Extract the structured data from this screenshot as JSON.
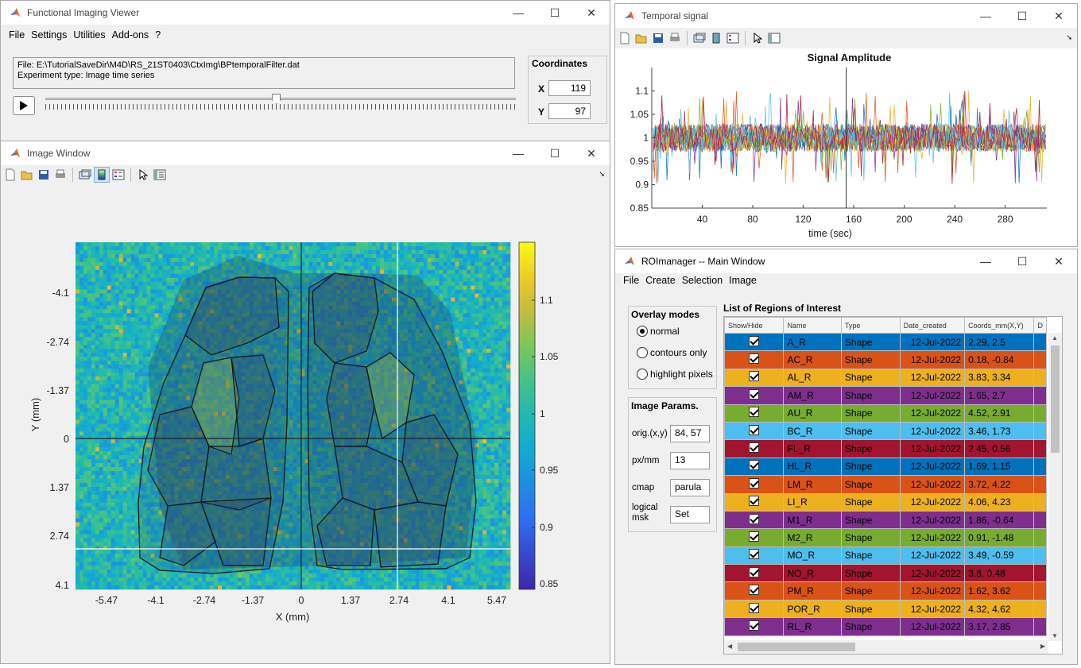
{
  "viewer": {
    "title": "Functional Imaging Viewer",
    "menu": [
      "File",
      "Settings",
      "Utilities",
      "Add-ons",
      "?"
    ],
    "file_line": "File: E:\\TutorialSaveDir\\M4D\\RS_21ST0403\\CtxImg\\BPtemporalFilter.dat",
    "type_line": "Experiment type: Image time series",
    "coords_title": "Coordinates",
    "x_label": "X",
    "x_value": "119",
    "y_label": "Y",
    "y_value": "97",
    "slider_fraction": 0.49
  },
  "image_window": {
    "title": "Image Window",
    "y_ticks": [
      "-4.1",
      "-2.74",
      "-1.37",
      "0",
      "1.37",
      "2.74",
      "4.1"
    ],
    "x_ticks": [
      "-5.47",
      "-4.1",
      "-2.74",
      "-1.37",
      "0",
      "1.37",
      "2.74",
      "4.1",
      "5.47"
    ],
    "xlabel": "X (mm)",
    "ylabel": "Y (mm)",
    "colorbar_ticks": [
      "1.1",
      "1.05",
      "1",
      "0.95",
      "0.9",
      "0.85"
    ]
  },
  "temporal": {
    "title": "Temporal signal",
    "chart_data": {
      "type": "line",
      "title": "Signal Amplitude",
      "xlabel": "time (sec)",
      "ylabel": "",
      "x_ticks": [
        "40",
        "80",
        "120",
        "160",
        "200",
        "240",
        "280"
      ],
      "y_ticks": [
        "1.1",
        "1.05",
        "1",
        "0.95",
        "0.9",
        "0.85"
      ],
      "xlim": [
        0,
        313
      ],
      "ylim": [
        0.85,
        1.15
      ],
      "cursor_x": 154
    }
  },
  "roi_manager": {
    "title": "ROImanager -- Main Window",
    "menu": [
      "File",
      "Create",
      "Selection",
      "Image"
    ],
    "overlay_title": "Overlay modes",
    "overlay_options": [
      "normal",
      "contours only",
      "highlight pixels"
    ],
    "overlay_selected": 0,
    "params_title": "Image Params.",
    "params": [
      {
        "label": "orig.(x,y)",
        "value": "84, 57"
      },
      {
        "label": "px/mm",
        "value": "13"
      },
      {
        "label": "cmap",
        "value": "parula"
      },
      {
        "label": "logical msk",
        "value": "Set"
      }
    ],
    "list_title": "List of Regions of Interest",
    "columns": [
      "Show/Hide",
      "Name",
      "Type",
      "Date_created",
      "Coords_mm(X,Y)",
      "D"
    ],
    "rows": [
      {
        "name": "A_R",
        "type": "Shape",
        "date": "12-Jul-2022",
        "coords": "2.29, 2.5",
        "color": "#0072bd"
      },
      {
        "name": "AC_R",
        "type": "Shape",
        "date": "12-Jul-2022",
        "coords": "0.18, -0.84",
        "color": "#d95319"
      },
      {
        "name": "AL_R",
        "type": "Shape",
        "date": "12-Jul-2022",
        "coords": "3.83, 3.34",
        "color": "#edb120"
      },
      {
        "name": "AM_R",
        "type": "Shape",
        "date": "12-Jul-2022",
        "coords": "1.65, 2.7",
        "color": "#7e2f8e"
      },
      {
        "name": "AU_R",
        "type": "Shape",
        "date": "12-Jul-2022",
        "coords": "4.52, 2.91",
        "color": "#77ac30"
      },
      {
        "name": "BC_R",
        "type": "Shape",
        "date": "12-Jul-2022",
        "coords": "3.46, 1.73",
        "color": "#4dbeee"
      },
      {
        "name": "FL_R",
        "type": "Shape",
        "date": "12-Jul-2022",
        "coords": "2.45, 0.56",
        "color": "#a2142f"
      },
      {
        "name": "HL_R",
        "type": "Shape",
        "date": "12-Jul-2022",
        "coords": "1.69, 1.15",
        "color": "#0072bd"
      },
      {
        "name": "LM_R",
        "type": "Shape",
        "date": "12-Jul-2022",
        "coords": "3.72, 4.22",
        "color": "#d95319"
      },
      {
        "name": "LI_R",
        "type": "Shape",
        "date": "12-Jul-2022",
        "coords": "4.06, 4.23",
        "color": "#edb120"
      },
      {
        "name": "M1_R",
        "type": "Shape",
        "date": "12-Jul-2022",
        "coords": "1.86, -0.64",
        "color": "#7e2f8e"
      },
      {
        "name": "M2_R",
        "type": "Shape",
        "date": "12-Jul-2022",
        "coords": "0.91, -1.48",
        "color": "#77ac30"
      },
      {
        "name": "MO_R",
        "type": "Shape",
        "date": "12-Jul-2022",
        "coords": "3.49, -0.59",
        "color": "#4dbeee"
      },
      {
        "name": "NO_R",
        "type": "Shape",
        "date": "12-Jul-2022",
        "coords": "3.8, 0.48",
        "color": "#a2142f"
      },
      {
        "name": "PM_R",
        "type": "Shape",
        "date": "12-Jul-2022",
        "coords": "1.62, 3.62",
        "color": "#d95319"
      },
      {
        "name": "POR_R",
        "type": "Shape",
        "date": "12-Jul-2022",
        "coords": "4.32, 4.62",
        "color": "#edb120"
      },
      {
        "name": "RL_R",
        "type": "Shape",
        "date": "12-Jul-2022",
        "coords": "3.17, 2.85",
        "color": "#7e2f8e"
      }
    ]
  }
}
